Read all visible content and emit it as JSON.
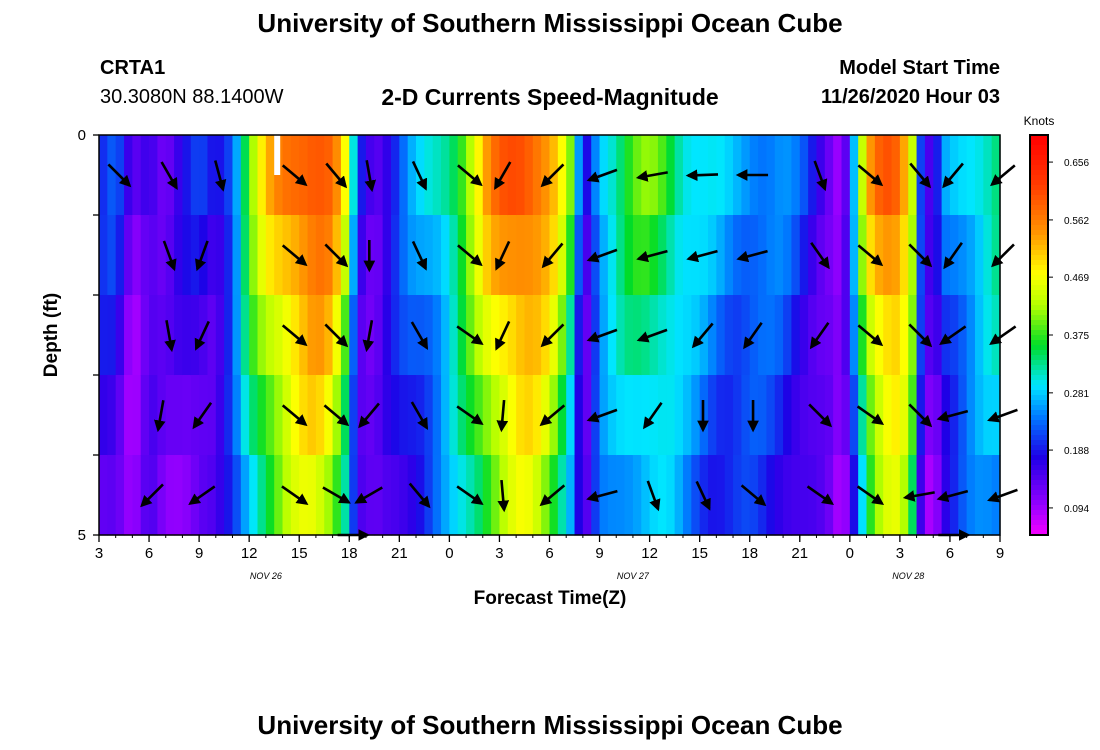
{
  "title_top": "University of Southern Mississippi Ocean Cube",
  "title_bottom": "University of Southern Mississippi Ocean Cube",
  "station": {
    "id": "CRTA1",
    "coords": "30.3080N 88.1400W"
  },
  "chart_title": "2-D Currents Speed-Magnitude",
  "model_start": {
    "label": "Model Start Time",
    "value": "11/26/2020 Hour 03"
  },
  "chart_data": {
    "type": "heatmap",
    "title": "2-D Currents Speed-Magnitude",
    "xlabel": "Forecast Time(Z)",
    "ylabel": "Depth (ft)",
    "x_hours": [
      0,
      3,
      6,
      9,
      12,
      15,
      18,
      21,
      24,
      27,
      30,
      33,
      36,
      39,
      42,
      45,
      48,
      51,
      54
    ],
    "x_tick_labels": [
      "3",
      "6",
      "9",
      "12",
      "15",
      "18",
      "21",
      "0",
      "3",
      "6",
      "9",
      "12",
      "15",
      "18",
      "21",
      "0",
      "3",
      "6",
      "9"
    ],
    "date_labels": [
      {
        "text": "NOV 26",
        "hour": 10
      },
      {
        "text": "NOV 27",
        "hour": 32
      },
      {
        "text": "NOV 28",
        "hour": 48.5
      }
    ],
    "xlim": [
      0,
      54
    ],
    "ylim": [
      0,
      5
    ],
    "y_ticks": [
      0,
      5
    ],
    "depth_levels": 5,
    "colorbar": {
      "unit": "Knots",
      "tick_values": [
        "0.656",
        "0.562",
        "0.469",
        "0.375",
        "0.281",
        "0.188",
        "0.094"
      ],
      "range": [
        0.05,
        0.7
      ]
    },
    "speed_profile": [
      [
        0,
        0.2
      ],
      [
        1,
        0.22
      ],
      [
        2,
        0.12
      ],
      [
        3,
        0.18
      ],
      [
        4,
        0.14
      ],
      [
        5,
        0.17
      ],
      [
        6,
        0.2
      ],
      [
        7,
        0.18
      ],
      [
        8,
        0.25
      ],
      [
        9,
        0.4
      ],
      [
        10,
        0.5
      ],
      [
        11,
        0.56
      ],
      [
        12,
        0.6
      ],
      [
        13,
        0.62
      ],
      [
        14,
        0.58
      ],
      [
        14.8,
        0.45
      ],
      [
        15.5,
        0.2
      ],
      [
        16.5,
        0.15
      ],
      [
        17.5,
        0.2
      ],
      [
        18.5,
        0.25
      ],
      [
        19.5,
        0.28
      ],
      [
        20.5,
        0.32
      ],
      [
        21.5,
        0.38
      ],
      [
        22.5,
        0.46
      ],
      [
        23.5,
        0.55
      ],
      [
        24.5,
        0.6
      ],
      [
        25.5,
        0.62
      ],
      [
        26.5,
        0.58
      ],
      [
        27.5,
        0.5
      ],
      [
        28.5,
        0.35
      ],
      [
        29,
        0.14
      ],
      [
        29.5,
        0.22
      ],
      [
        30,
        0.3
      ],
      [
        31,
        0.34
      ],
      [
        32,
        0.38
      ],
      [
        33,
        0.4
      ],
      [
        34,
        0.38
      ],
      [
        35,
        0.33
      ],
      [
        36,
        0.3
      ],
      [
        37,
        0.28
      ],
      [
        38,
        0.27
      ],
      [
        39,
        0.27
      ],
      [
        40,
        0.26
      ],
      [
        41,
        0.25
      ],
      [
        42,
        0.22
      ],
      [
        43,
        0.18
      ],
      [
        44,
        0.14
      ],
      [
        44.5,
        0.1
      ],
      [
        45,
        0.2
      ],
      [
        46,
        0.5
      ],
      [
        47,
        0.6
      ],
      [
        48,
        0.6
      ],
      [
        48.8,
        0.45
      ],
      [
        49.3,
        0.2
      ],
      [
        50,
        0.12
      ],
      [
        50.5,
        0.24
      ],
      [
        51,
        0.26
      ],
      [
        52,
        0.3
      ],
      [
        53,
        0.33
      ],
      [
        54,
        0.35
      ]
    ],
    "vectors": [
      {
        "h": 0,
        "d": 0,
        "ang": 45
      },
      {
        "h": 3,
        "d": 0,
        "ang": 60
      },
      {
        "h": 6,
        "d": 0,
        "ang": 75
      },
      {
        "h": 10.5,
        "d": 0,
        "ang": 40
      },
      {
        "h": 13,
        "d": 0,
        "ang": 50
      },
      {
        "h": 15,
        "d": 0,
        "ang": 80
      },
      {
        "h": 18,
        "d": 0,
        "ang": 65
      },
      {
        "h": 21,
        "d": 0,
        "ang": 40
      },
      {
        "h": 23,
        "d": 0,
        "ang": 120
      },
      {
        "h": 26,
        "d": 0,
        "ang": 135
      },
      {
        "h": 29,
        "d": 0,
        "ang": 160
      },
      {
        "h": 32,
        "d": 0,
        "ang": 170
      },
      {
        "h": 35,
        "d": 0,
        "ang": 178
      },
      {
        "h": 38,
        "d": 0,
        "ang": 180
      },
      {
        "h": 42,
        "d": 0,
        "ang": 70
      },
      {
        "h": 45,
        "d": 0,
        "ang": 40
      },
      {
        "h": 48,
        "d": 0,
        "ang": 50
      },
      {
        "h": 50,
        "d": 0,
        "ang": 130
      },
      {
        "h": 53,
        "d": 0,
        "ang": 140
      },
      {
        "h": 3,
        "d": 1,
        "ang": 70
      },
      {
        "h": 5,
        "d": 1,
        "ang": 110
      },
      {
        "h": 10.5,
        "d": 1,
        "ang": 40
      },
      {
        "h": 13,
        "d": 1,
        "ang": 45
      },
      {
        "h": 15,
        "d": 1,
        "ang": 90
      },
      {
        "h": 18,
        "d": 1,
        "ang": 65
      },
      {
        "h": 21,
        "d": 1,
        "ang": 40
      },
      {
        "h": 23,
        "d": 1,
        "ang": 115
      },
      {
        "h": 26,
        "d": 1,
        "ang": 130
      },
      {
        "h": 29,
        "d": 1,
        "ang": 160
      },
      {
        "h": 32,
        "d": 1,
        "ang": 165
      },
      {
        "h": 35,
        "d": 1,
        "ang": 165
      },
      {
        "h": 38,
        "d": 1,
        "ang": 165
      },
      {
        "h": 42,
        "d": 1,
        "ang": 55
      },
      {
        "h": 45,
        "d": 1,
        "ang": 40
      },
      {
        "h": 48,
        "d": 1,
        "ang": 45
      },
      {
        "h": 50,
        "d": 1,
        "ang": 125
      },
      {
        "h": 53,
        "d": 1,
        "ang": 135
      },
      {
        "h": 3,
        "d": 2,
        "ang": 80
      },
      {
        "h": 5,
        "d": 2,
        "ang": 115
      },
      {
        "h": 10.5,
        "d": 2,
        "ang": 40
      },
      {
        "h": 13,
        "d": 2,
        "ang": 45
      },
      {
        "h": 15,
        "d": 2,
        "ang": 100
      },
      {
        "h": 18,
        "d": 2,
        "ang": 60
      },
      {
        "h": 21,
        "d": 2,
        "ang": 35
      },
      {
        "h": 23,
        "d": 2,
        "ang": 115
      },
      {
        "h": 26,
        "d": 2,
        "ang": 135
      },
      {
        "h": 29,
        "d": 2,
        "ang": 160
      },
      {
        "h": 32,
        "d": 2,
        "ang": 160
      },
      {
        "h": 35,
        "d": 2,
        "ang": 130
      },
      {
        "h": 38,
        "d": 2,
        "ang": 125
      },
      {
        "h": 42,
        "d": 2,
        "ang": 125
      },
      {
        "h": 45,
        "d": 2,
        "ang": 40
      },
      {
        "h": 48,
        "d": 2,
        "ang": 45
      },
      {
        "h": 50,
        "d": 2,
        "ang": 145
      },
      {
        "h": 53,
        "d": 2,
        "ang": 145
      },
      {
        "h": 2.5,
        "d": 3,
        "ang": 100
      },
      {
        "h": 5,
        "d": 3,
        "ang": 125
      },
      {
        "h": 10.5,
        "d": 3,
        "ang": 40
      },
      {
        "h": 13,
        "d": 3,
        "ang": 40
      },
      {
        "h": 15,
        "d": 3,
        "ang": 130
      },
      {
        "h": 18,
        "d": 3,
        "ang": 60
      },
      {
        "h": 21,
        "d": 3,
        "ang": 35
      },
      {
        "h": 23,
        "d": 3,
        "ang": 95
      },
      {
        "h": 26,
        "d": 3,
        "ang": 140
      },
      {
        "h": 29,
        "d": 3,
        "ang": 160
      },
      {
        "h": 32,
        "d": 3,
        "ang": 125
      },
      {
        "h": 35,
        "d": 3,
        "ang": 90
      },
      {
        "h": 38,
        "d": 3,
        "ang": 90
      },
      {
        "h": 42,
        "d": 3,
        "ang": 45
      },
      {
        "h": 45,
        "d": 3,
        "ang": 35
      },
      {
        "h": 48,
        "d": 3,
        "ang": 45
      },
      {
        "h": 50,
        "d": 3,
        "ang": 165
      },
      {
        "h": 53,
        "d": 3,
        "ang": 160
      },
      {
        "h": 2,
        "d": 4,
        "ang": 135
      },
      {
        "h": 5,
        "d": 4,
        "ang": 145
      },
      {
        "h": 10.5,
        "d": 4,
        "ang": 35
      },
      {
        "h": 13,
        "d": 4,
        "ang": 30
      },
      {
        "h": 15,
        "d": 4,
        "ang": 150
      },
      {
        "h": 18,
        "d": 4,
        "ang": 50
      },
      {
        "h": 21,
        "d": 4,
        "ang": 35
      },
      {
        "h": 23,
        "d": 4,
        "ang": 85
      },
      {
        "h": 26,
        "d": 4,
        "ang": 140
      },
      {
        "h": 29,
        "d": 4,
        "ang": 165
      },
      {
        "h": 32,
        "d": 4,
        "ang": 70
      },
      {
        "h": 35,
        "d": 4,
        "ang": 65
      },
      {
        "h": 38,
        "d": 4,
        "ang": 40
      },
      {
        "h": 42,
        "d": 4,
        "ang": 35
      },
      {
        "h": 45,
        "d": 4,
        "ang": 35
      },
      {
        "h": 48,
        "d": 4,
        "ang": 170
      },
      {
        "h": 50,
        "d": 4,
        "ang": 165
      },
      {
        "h": 53,
        "d": 4,
        "ang": 160
      },
      {
        "h": 14,
        "d": 5,
        "ang": 0
      },
      {
        "h": 50,
        "d": 5,
        "ang": 0
      }
    ]
  }
}
